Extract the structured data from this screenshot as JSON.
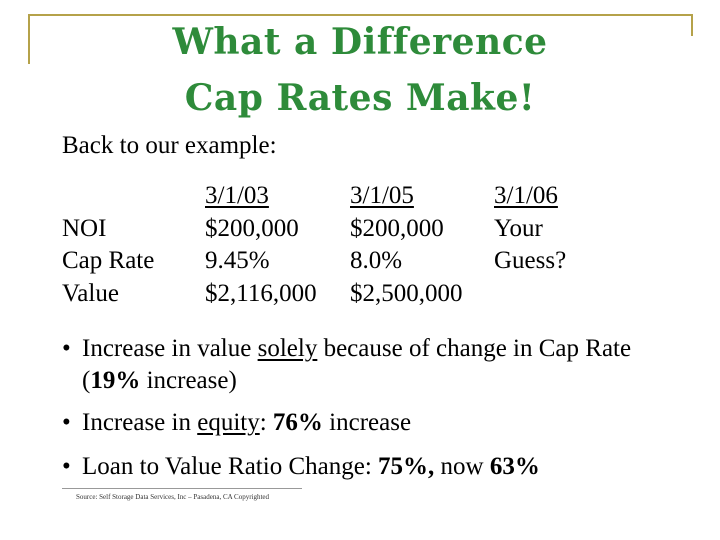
{
  "title": {
    "line1": "What a Difference",
    "line2": "Cap Rates Make!"
  },
  "intro": "Back to our example:",
  "table": {
    "row_labels": [
      "",
      "NOI",
      "Cap Rate",
      "Value"
    ],
    "columns": [
      {
        "header": "3/1/03",
        "noi": "$200,000",
        "cap_rate": "9.45%",
        "value": "$2,116,000"
      },
      {
        "header": "3/1/05",
        "noi": "$200,000",
        "cap_rate": "8.0%",
        "value": "$2,500,000"
      },
      {
        "header": "3/1/06",
        "noi": "Your",
        "cap_rate": "Guess?",
        "value": ""
      }
    ]
  },
  "bullets": {
    "b1": {
      "marker": "•",
      "p1": "Increase in value ",
      "p2": "solely",
      "p3": " because of change in Cap Rate (",
      "p4": "19%",
      "p5": " increase)"
    },
    "b2": {
      "marker": "•",
      "p1": "Increase in ",
      "p2": "equity",
      "p3": ": ",
      "p4": "76%",
      "p5": " increase"
    },
    "b3": {
      "marker": "•",
      "p1": "Loan to Value Ratio Change: ",
      "p2": "75%,",
      "p3": " now ",
      "p4": "63%"
    }
  },
  "source": "Source: Self Storage Data Services, Inc – Pasadena, CA Copyrighted",
  "colors": {
    "title": "#2e8b3a",
    "frame": "#b5a24a"
  }
}
